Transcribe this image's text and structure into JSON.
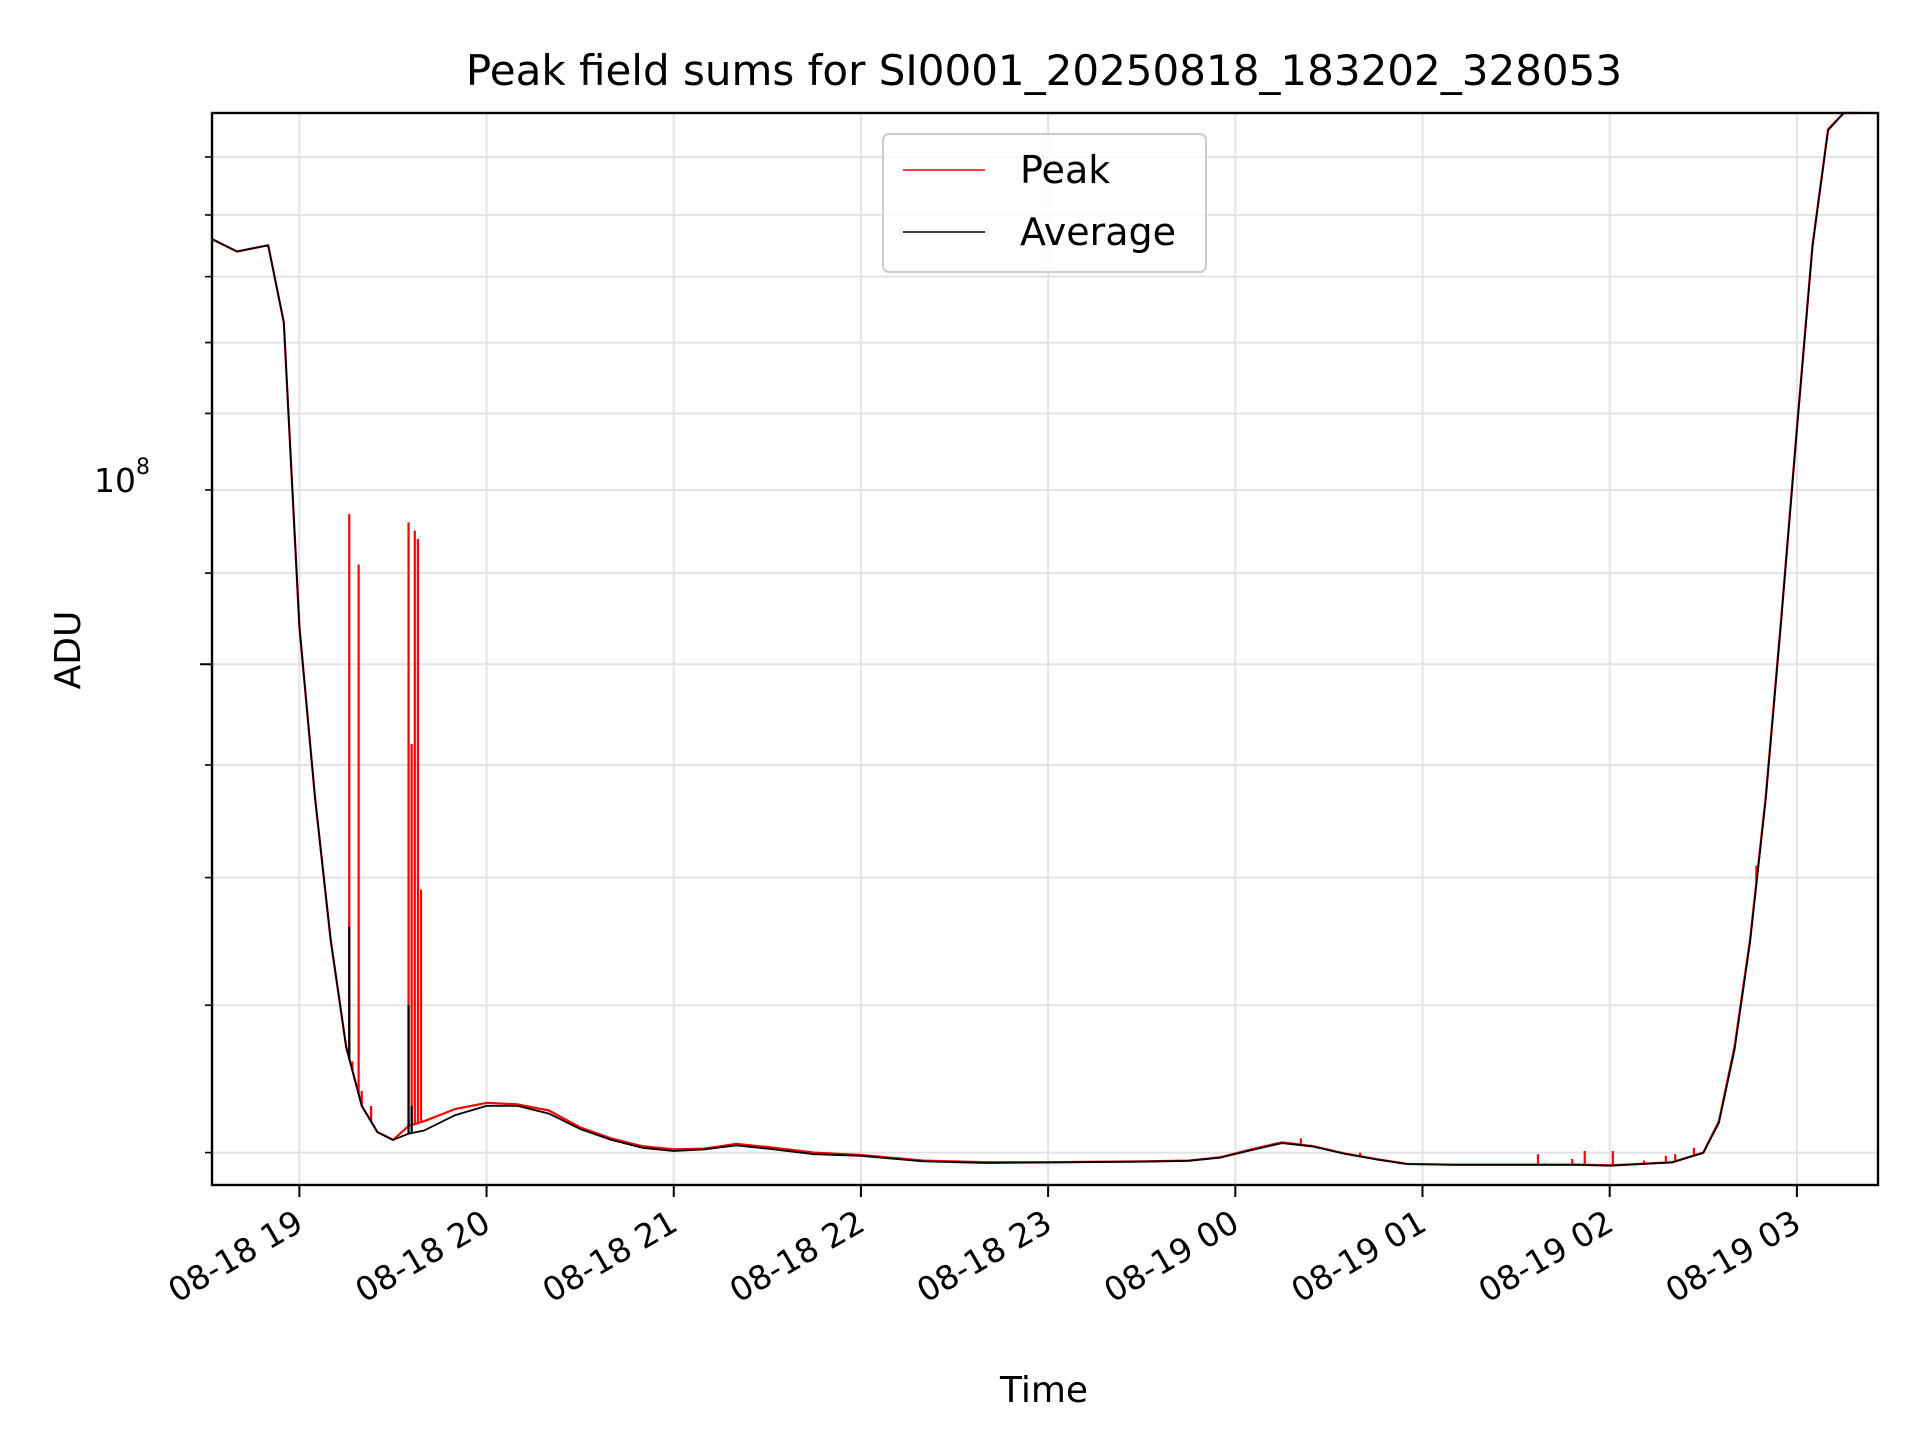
{
  "chart_data": {
    "type": "line",
    "title": "Peak field sums for SI0001_20250818_183202_328053",
    "xlabel": "Time",
    "ylabel": "ADU",
    "y_scale": "log",
    "y_tick_label": {
      "base": "10",
      "exp": "8"
    },
    "ylim": [
      58000000,
      178000000
    ],
    "xlim": [
      "2025-08-18 18:32",
      "2025-08-19 03:26"
    ],
    "x_ticks": [
      "08-18 19",
      "08-18 20",
      "08-18 21",
      "08-18 22",
      "08-18 23",
      "08-19 00",
      "08-19 01",
      "08-19 02",
      "08-19 03"
    ],
    "grid": true,
    "legend_position": "upper center",
    "series": [
      {
        "name": "Peak",
        "color": "#ff0000",
        "x": [
          "2025-08-18 18:32",
          "2025-08-18 18:40",
          "2025-08-18 18:50",
          "2025-08-18 18:55",
          "2025-08-18 19:00",
          "2025-08-18 19:05",
          "2025-08-18 19:10",
          "2025-08-18 19:15",
          "2025-08-18 19:20",
          "2025-08-18 19:25",
          "2025-08-18 19:30",
          "2025-08-18 19:35",
          "2025-08-18 19:40",
          "2025-08-18 19:50",
          "2025-08-18 20:00",
          "2025-08-18 20:10",
          "2025-08-18 20:20",
          "2025-08-18 20:30",
          "2025-08-18 20:40",
          "2025-08-18 20:50",
          "2025-08-18 21:00",
          "2025-08-18 21:10",
          "2025-08-18 21:20",
          "2025-08-18 21:30",
          "2025-08-18 21:45",
          "2025-08-18 22:00",
          "2025-08-18 22:20",
          "2025-08-18 22:40",
          "2025-08-18 23:00",
          "2025-08-18 23:30",
          "2025-08-18 23:45",
          "2025-08-18 23:55",
          "2025-08-19 00:05",
          "2025-08-19 00:15",
          "2025-08-19 00:25",
          "2025-08-19 00:35",
          "2025-08-19 00:45",
          "2025-08-19 00:55",
          "2025-08-19 01:10",
          "2025-08-19 01:30",
          "2025-08-19 01:50",
          "2025-08-19 02:00",
          "2025-08-19 02:10",
          "2025-08-19 02:20",
          "2025-08-19 02:30",
          "2025-08-19 02:35",
          "2025-08-19 02:40",
          "2025-08-19 02:45",
          "2025-08-19 02:50",
          "2025-08-19 02:55",
          "2025-08-19 03:00",
          "2025-08-19 03:05",
          "2025-08-19 03:10",
          "2025-08-19 03:15",
          "2025-08-19 03:20"
        ],
        "y": [
          156000000,
          154000000,
          155000000,
          143000000,
          104000000,
          87000000,
          75000000,
          67000000,
          63000000,
          61300000,
          60800000,
          61700000,
          62000000,
          62800000,
          63200000,
          63100000,
          62700000,
          61600000,
          60900000,
          60400000,
          60200000,
          60250000,
          60550000,
          60350000,
          60000000,
          59850000,
          59500000,
          59400000,
          59400000,
          59450000,
          59500000,
          59700000,
          60200000,
          60650000,
          60400000,
          59950000,
          59600000,
          59300000,
          59250000,
          59250000,
          59250000,
          59200000,
          59300000,
          59400000,
          60000000,
          62000000,
          67000000,
          75000000,
          87000000,
          105000000,
          128000000,
          155000000,
          175000000,
          178000000,
          178000000
        ],
        "spikes": [
          {
            "x": "2025-08-18 19:16",
            "y": 117000000
          },
          {
            "x": "2025-08-18 19:17",
            "y": 66000000
          },
          {
            "x": "2025-08-18 19:19",
            "y": 111000000
          },
          {
            "x": "2025-08-18 19:20",
            "y": 64000000
          },
          {
            "x": "2025-08-18 19:23",
            "y": 63000000
          },
          {
            "x": "2025-08-18 19:35",
            "y": 116000000
          },
          {
            "x": "2025-08-18 19:36",
            "y": 92000000
          },
          {
            "x": "2025-08-18 19:37",
            "y": 115000000
          },
          {
            "x": "2025-08-18 19:38",
            "y": 114000000
          },
          {
            "x": "2025-08-18 19:39",
            "y": 79000000
          },
          {
            "x": "2025-08-19 00:21",
            "y": 60900000
          },
          {
            "x": "2025-08-19 00:40",
            "y": 60000000
          },
          {
            "x": "2025-08-19 01:37",
            "y": 59900000
          },
          {
            "x": "2025-08-19 01:48",
            "y": 59600000
          },
          {
            "x": "2025-08-19 01:52",
            "y": 60100000
          },
          {
            "x": "2025-08-19 02:01",
            "y": 60100000
          },
          {
            "x": "2025-08-19 02:11",
            "y": 59500000
          },
          {
            "x": "2025-08-19 02:18",
            "y": 59800000
          },
          {
            "x": "2025-08-19 02:21",
            "y": 59900000
          },
          {
            "x": "2025-08-19 02:27",
            "y": 60300000
          },
          {
            "x": "2025-08-19 02:35",
            "y": 62000000
          },
          {
            "x": "2025-08-19 02:47",
            "y": 81000000
          }
        ]
      },
      {
        "name": "Average",
        "color": "#000000",
        "x": [
          "2025-08-18 18:32",
          "2025-08-18 18:40",
          "2025-08-18 18:50",
          "2025-08-18 18:55",
          "2025-08-18 19:00",
          "2025-08-18 19:05",
          "2025-08-18 19:10",
          "2025-08-18 19:15",
          "2025-08-18 19:20",
          "2025-08-18 19:25",
          "2025-08-18 19:30",
          "2025-08-18 19:35",
          "2025-08-18 19:40",
          "2025-08-18 19:50",
          "2025-08-18 20:00",
          "2025-08-18 20:10",
          "2025-08-18 20:20",
          "2025-08-18 20:30",
          "2025-08-18 20:40",
          "2025-08-18 20:50",
          "2025-08-18 21:00",
          "2025-08-18 21:10",
          "2025-08-18 21:20",
          "2025-08-18 21:30",
          "2025-08-18 21:45",
          "2025-08-18 22:00",
          "2025-08-18 22:20",
          "2025-08-18 22:40",
          "2025-08-18 23:00",
          "2025-08-18 23:30",
          "2025-08-18 23:45",
          "2025-08-18 23:55",
          "2025-08-19 00:05",
          "2025-08-19 00:15",
          "2025-08-19 00:25",
          "2025-08-19 00:35",
          "2025-08-19 00:45",
          "2025-08-19 00:55",
          "2025-08-19 01:10",
          "2025-08-19 01:30",
          "2025-08-19 01:50",
          "2025-08-19 02:00",
          "2025-08-19 02:10",
          "2025-08-19 02:20",
          "2025-08-19 02:30",
          "2025-08-19 02:35",
          "2025-08-19 02:40",
          "2025-08-19 02:45",
          "2025-08-19 02:50",
          "2025-08-19 02:55",
          "2025-08-19 03:00",
          "2025-08-19 03:05",
          "2025-08-19 03:10",
          "2025-08-19 03:15",
          "2025-08-19 03:20"
        ],
        "y": [
          156000000,
          154000000,
          155000000,
          143000000,
          104000000,
          87000000,
          75000000,
          67000000,
          63000000,
          61300000,
          60800000,
          61200000,
          61400000,
          62400000,
          63000000,
          63000000,
          62500000,
          61500000,
          60800000,
          60300000,
          60100000,
          60200000,
          60450000,
          60250000,
          59900000,
          59800000,
          59450000,
          59350000,
          59380000,
          59430000,
          59480000,
          59680000,
          60150000,
          60600000,
          60380000,
          59930000,
          59580000,
          59280000,
          59230000,
          59230000,
          59230000,
          59180000,
          59280000,
          59380000,
          59980000,
          61900000,
          66800000,
          74800000,
          86800000,
          104800000,
          127800000,
          154800000,
          174800000,
          178000000,
          178000000
        ],
        "spikes": [
          {
            "x": "2025-08-18 19:16",
            "y": 76000000
          },
          {
            "x": "2025-08-18 19:35",
            "y": 70000000
          },
          {
            "x": "2025-08-18 19:36",
            "y": 63000000
          }
        ]
      }
    ]
  }
}
